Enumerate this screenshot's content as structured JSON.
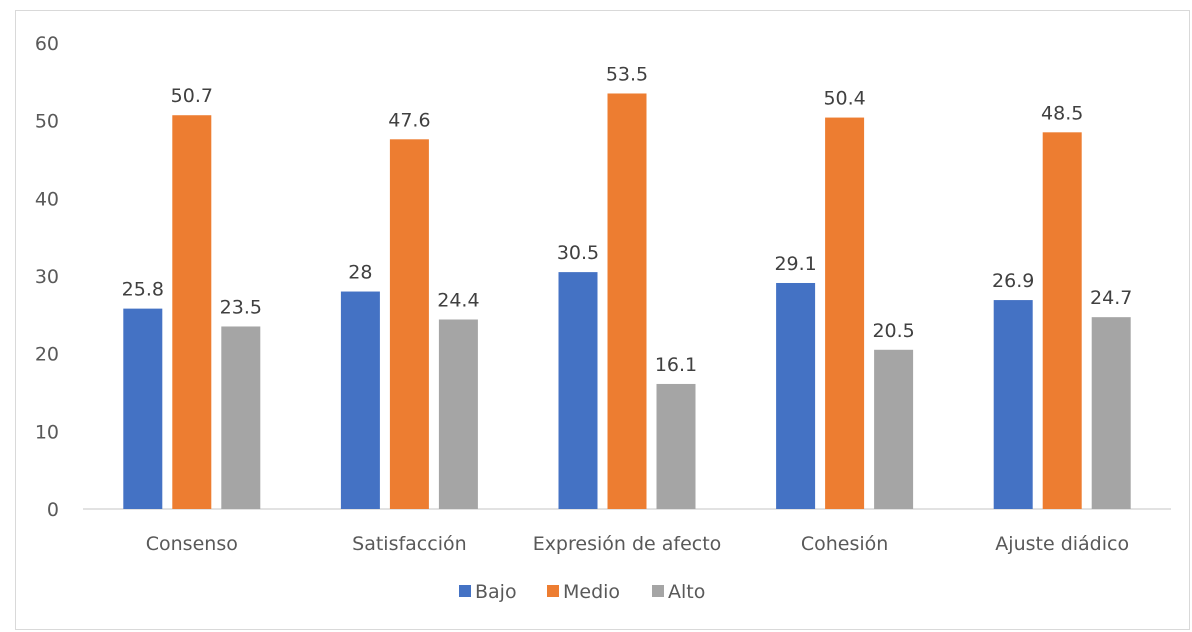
{
  "chart_data": {
    "type": "bar",
    "title": "",
    "xlabel": "",
    "ylabel": "",
    "categories": [
      "Consenso",
      "Satisfacción",
      "Expresión de afecto",
      "Cohesión",
      "Ajuste diádico"
    ],
    "series": [
      {
        "name": "Bajo",
        "color": "#4472c4",
        "values": [
          25.8,
          28,
          30.5,
          29.1,
          26.9
        ],
        "labels": [
          "25.8",
          "28",
          "30.5",
          "29.1",
          "26.9"
        ]
      },
      {
        "name": "Medio",
        "color": "#ed7d31",
        "values": [
          50.7,
          47.6,
          53.5,
          50.4,
          48.5
        ],
        "labels": [
          "50.7",
          "47.6",
          "53.5",
          "50.4",
          "48.5"
        ]
      },
      {
        "name": "Alto",
        "color": "#a5a5a5",
        "values": [
          23.5,
          24.4,
          16.1,
          20.5,
          24.7
        ],
        "labels": [
          "23.5",
          "24.4",
          "16.1",
          "20.5",
          "24.7"
        ]
      }
    ],
    "ylim": [
      0,
      60
    ],
    "yticks": [
      "0",
      "10",
      "20",
      "30",
      "40",
      "50",
      "60"
    ],
    "grid": false,
    "legend_position": "bottom",
    "data_labels": true
  }
}
